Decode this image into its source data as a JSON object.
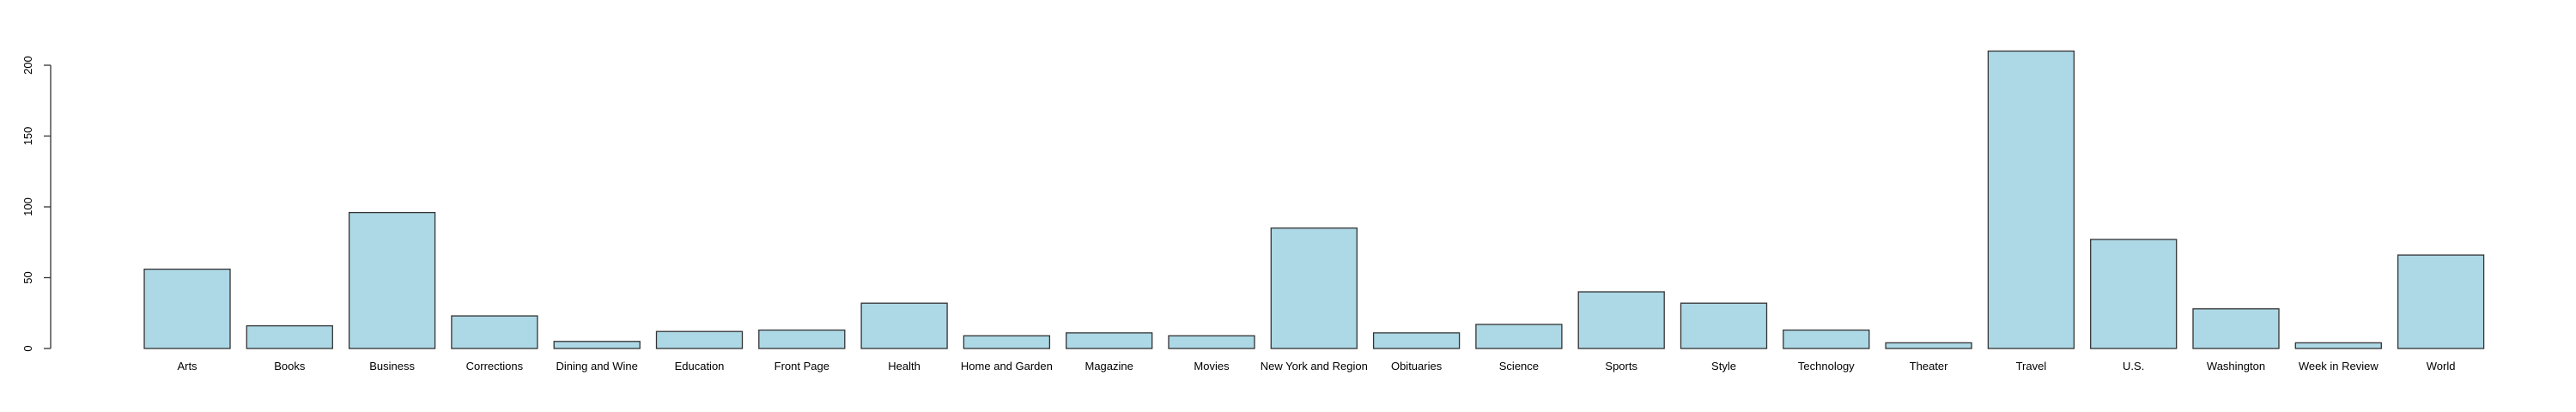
{
  "chart_data": {
    "type": "bar",
    "title": "",
    "xlabel": "",
    "ylabel": "",
    "ylim": [
      0,
      200
    ],
    "yticks": [
      0,
      50,
      100,
      150,
      200
    ],
    "grid": false,
    "colors": {
      "bar_fill": "#add8e6",
      "bar_stroke": "#333333"
    },
    "categories": [
      "Arts",
      "Books",
      "Business",
      "Corrections",
      "Dining and Wine",
      "Education",
      "Front Page",
      "Health",
      "Home and Garden",
      "Magazine",
      "Movies",
      "New York and Region",
      "Obituaries",
      "Science",
      "Sports",
      "Style",
      "Technology",
      "Theater",
      "Travel",
      "U.S.",
      "Washington",
      "Week in Review",
      "World"
    ],
    "values": [
      56,
      16,
      96,
      23,
      5,
      12,
      13,
      32,
      9,
      11,
      9,
      85,
      11,
      17,
      40,
      32,
      13,
      4,
      210,
      77,
      28,
      4,
      66
    ]
  }
}
